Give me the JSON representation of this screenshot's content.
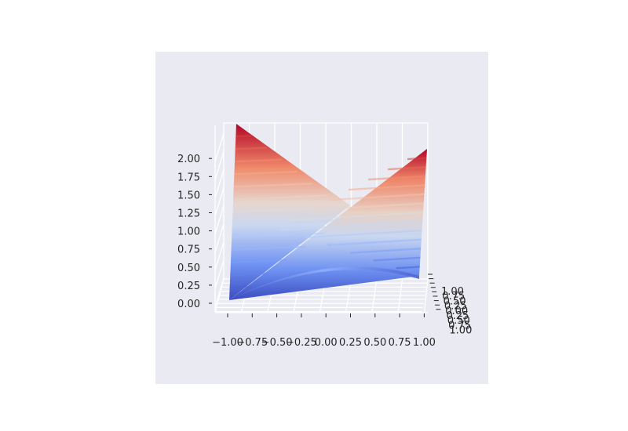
{
  "chart_data": {
    "type": "surface3d",
    "function": "z = x^2 + ... (saddle-like surface, filled contour bands, coolwarm colormap)",
    "colormap": [
      "#3b4cc0",
      "#6f92f3",
      "#aac7fd",
      "#dddcdc",
      "#f7b89c",
      "#e7745b",
      "#b40426"
    ],
    "x_ticks": [
      "−1.00",
      "−0.75",
      "−0.50",
      "−0.25",
      "0.00",
      "0.25",
      "0.50",
      "0.75",
      "1.00"
    ],
    "y_ticks": [
      "1.00",
      "0.75",
      "0.50",
      "0.25",
      "0.00",
      "0.25",
      "0.50",
      "0.75",
      "1.00"
    ],
    "z_ticks": [
      "0.00",
      "0.25",
      "0.50",
      "0.75",
      "1.00",
      "1.25",
      "1.50",
      "1.75",
      "2.00"
    ],
    "xlim": [
      -1,
      1
    ],
    "ylim": [
      -1,
      1
    ],
    "zlim": [
      0,
      2
    ],
    "grid": true,
    "background": "#eaeaf2"
  }
}
